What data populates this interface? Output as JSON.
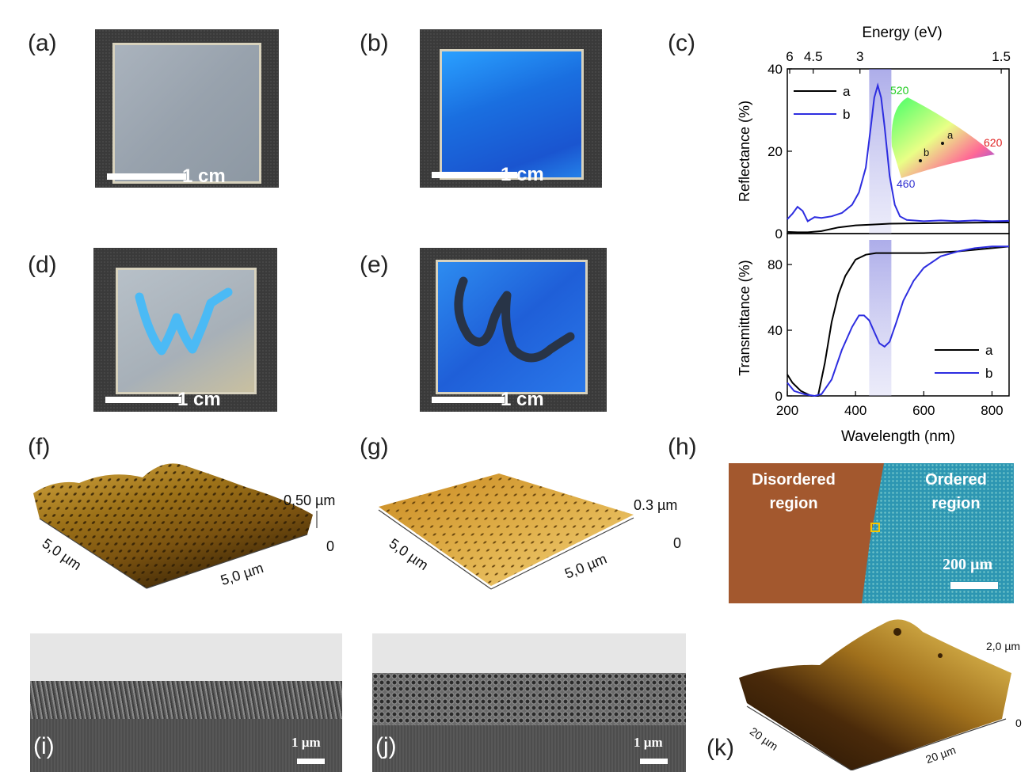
{
  "panels": {
    "a": {
      "label": "(a)",
      "scale": "1 cm"
    },
    "b": {
      "label": "(b)",
      "scale": "1 cm"
    },
    "c": {
      "label": "(c)"
    },
    "d": {
      "label": "(d)",
      "scale": "1 cm"
    },
    "e": {
      "label": "(e)",
      "scale": "1 cm"
    },
    "f": {
      "label": "(f)",
      "z_max": "0,50 µm",
      "z_min": "0",
      "axis_left": "5,0 µm",
      "axis_right": "5,0 µm"
    },
    "g": {
      "label": "(g)",
      "z_max": "0.3 µm",
      "z_min": "0",
      "axis_left": "5,0 µm",
      "axis_right": "5,0 µm"
    },
    "h": {
      "label": "(h)",
      "left_region_line1": "Disordered",
      "left_region_line2": "region",
      "right_region_line1": "Ordered",
      "right_region_line2": "region",
      "scale": "200 µm"
    },
    "i": {
      "label": "(i)",
      "scale": "1 µm"
    },
    "j": {
      "label": "(j)",
      "scale": "1 µm"
    },
    "k": {
      "label": "(k)",
      "z_max": "2,0 µm",
      "z_min": "0",
      "axis_left": "20 µm",
      "axis_right": "20 µm"
    }
  },
  "chart_data": [
    {
      "type": "line",
      "title": "",
      "xlabel": "Wavelength (nm)",
      "top_xlabel": "Energy (eV)",
      "top_ticks": [
        "6",
        "4.5",
        "3",
        "1.5"
      ],
      "top_tick_wavelengths": [
        207,
        276,
        413,
        827
      ],
      "ylabel": "Reflectance (%)",
      "xlim": [
        200,
        850
      ],
      "ylim": [
        0,
        40
      ],
      "xticks": [
        200,
        400,
        600,
        800
      ],
      "yticks": [
        0,
        20,
        40
      ],
      "highlight_band": [
        440,
        505
      ],
      "legend": [
        "a",
        "b"
      ],
      "series": [
        {
          "name": "a",
          "color": "#000000",
          "x": [
            200,
            230,
            260,
            300,
            350,
            400,
            450,
            500,
            600,
            700,
            800,
            850
          ],
          "y": [
            0.4,
            0.3,
            0.3,
            0.6,
            1.5,
            2.0,
            2.2,
            2.4,
            2.5,
            2.6,
            2.7,
            2.7
          ]
        },
        {
          "name": "b",
          "color": "#2d2de0",
          "x": [
            200,
            215,
            230,
            245,
            260,
            280,
            300,
            330,
            360,
            390,
            410,
            430,
            445,
            455,
            465,
            475,
            485,
            500,
            515,
            530,
            550,
            600,
            650,
            700,
            750,
            800,
            850
          ],
          "y": [
            3.5,
            4.8,
            6.5,
            5.5,
            3.0,
            4.0,
            3.8,
            4.2,
            5.0,
            7.0,
            10.0,
            16.0,
            26.0,
            33.0,
            36.0,
            33.0,
            26.0,
            14.0,
            7.0,
            4.2,
            3.3,
            3.0,
            3.2,
            3.0,
            3.2,
            3.0,
            3.1
          ]
        }
      ],
      "inset": {
        "type": "CIE chromaticity",
        "labels": [
          "520",
          "620",
          "460"
        ],
        "points": [
          "a",
          "b"
        ]
      }
    },
    {
      "type": "line",
      "xlabel": "Wavelength (nm)",
      "ylabel": "Transmittance (%)",
      "xlim": [
        200,
        850
      ],
      "ylim": [
        0,
        95
      ],
      "xticks": [
        200,
        400,
        600,
        800
      ],
      "yticks": [
        0,
        40,
        80
      ],
      "highlight_band": [
        440,
        505
      ],
      "legend": [
        "a",
        "b"
      ],
      "series": [
        {
          "name": "a",
          "color": "#000000",
          "x": [
            200,
            215,
            240,
            270,
            290,
            310,
            330,
            350,
            370,
            400,
            430,
            460,
            500,
            600,
            700,
            800,
            850
          ],
          "y": [
            13,
            8,
            3,
            0,
            0,
            20,
            45,
            62,
            73,
            83,
            86,
            87,
            87,
            87,
            88,
            90,
            91
          ]
        },
        {
          "name": "b",
          "color": "#2d2de0",
          "x": [
            200,
            220,
            250,
            280,
            300,
            330,
            360,
            390,
            410,
            425,
            440,
            455,
            470,
            485,
            500,
            520,
            540,
            570,
            600,
            650,
            700,
            750,
            800,
            850
          ],
          "y": [
            8,
            3,
            1,
            0,
            1,
            10,
            28,
            42,
            49,
            49,
            46,
            39,
            32,
            30,
            33,
            45,
            58,
            70,
            78,
            85,
            88,
            90,
            91,
            91
          ]
        }
      ]
    }
  ]
}
